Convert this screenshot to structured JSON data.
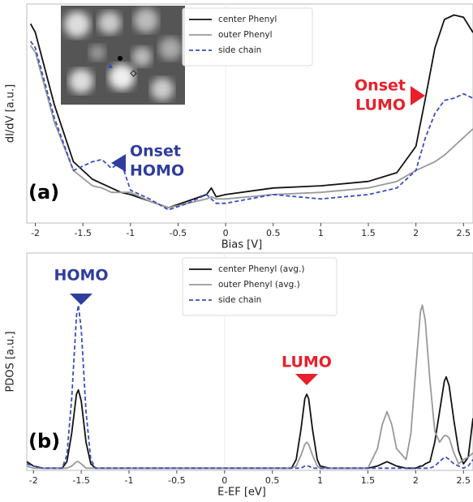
{
  "chart_data": [
    {
      "type": "line",
      "panel_label": "(a)",
      "xlabel": "Bias [V]",
      "ylabel": "dI/dV [a.u.]",
      "xlim": [
        -2.09,
        2.6
      ],
      "ylim": [
        0,
        1
      ],
      "xticks": [
        -2,
        -1.5,
        -1,
        -0.5,
        0,
        0.5,
        1,
        1.5,
        2,
        2.5
      ],
      "x": [
        -2.05,
        -2,
        -1.8,
        -1.6,
        -1.4,
        -1.3,
        -1.2,
        -1.1,
        -1,
        -0.8,
        -0.6,
        -0.4,
        -0.2,
        -0.15,
        -0.1,
        0,
        0.5,
        1,
        1.5,
        1.8,
        2,
        2.1,
        2.2,
        2.3,
        2.4,
        2.5,
        2.6
      ],
      "series": [
        {
          "name": "center Phenyl",
          "color": "#111111",
          "dash": false,
          "values": [
            0.91,
            0.87,
            0.54,
            0.28,
            0.2,
            0.18,
            0.16,
            0.14,
            0.13,
            0.1,
            0.07,
            0.1,
            0.13,
            0.16,
            0.12,
            0.13,
            0.16,
            0.17,
            0.19,
            0.23,
            0.35,
            0.57,
            0.8,
            0.93,
            0.95,
            0.94,
            0.87
          ]
        },
        {
          "name": "outer Phenyl",
          "color": "#999999",
          "dash": false,
          "values": [
            0.81,
            0.78,
            0.46,
            0.24,
            0.17,
            0.16,
            0.14,
            0.14,
            0.14,
            0.1,
            0.07,
            0.09,
            0.11,
            0.12,
            0.11,
            0.11,
            0.13,
            0.14,
            0.16,
            0.19,
            0.24,
            0.26,
            0.28,
            0.31,
            0.35,
            0.39,
            0.43
          ]
        },
        {
          "name": "side chain",
          "color": "#3a4dbf",
          "dash": true,
          "values": [
            0.83,
            0.8,
            0.48,
            0.24,
            0.28,
            0.29,
            0.25,
            0.28,
            0.15,
            0.11,
            0.06,
            0.09,
            0.13,
            0.11,
            0.09,
            0.09,
            0.13,
            0.11,
            0.13,
            0.16,
            0.24,
            0.39,
            0.5,
            0.56,
            0.57,
            0.59,
            0.57
          ]
        }
      ],
      "annotations": [
        {
          "lines": [
            "Onset",
            "HOMO"
          ],
          "color": "#2e3d9e"
        },
        {
          "lines": [
            "Onset",
            "LUMO"
          ],
          "color": "#e8202a"
        }
      ]
    },
    {
      "type": "line",
      "panel_label": "(b)",
      "xlabel": "E-EF [eV]",
      "ylabel": "PDOS [a.u.]",
      "xlim": [
        -2.07,
        2.6
      ],
      "ylim": [
        0,
        1
      ],
      "xticks": [
        -2,
        -1.5,
        -1,
        -0.5,
        0,
        0.5,
        1,
        1.5,
        2,
        2.5
      ],
      "x": [
        -2.07,
        -2,
        -1.9,
        -1.8,
        -1.7,
        -1.65,
        -1.6,
        -1.55,
        -1.53,
        -1.5,
        -1.45,
        -1.4,
        -1.35,
        -1.3,
        -1.2,
        -1,
        -0.5,
        0,
        0.5,
        0.7,
        0.75,
        0.8,
        0.84,
        0.86,
        0.88,
        0.92,
        0.97,
        1,
        1.1,
        1.3,
        1.5,
        1.6,
        1.65,
        1.7,
        1.75,
        1.8,
        1.9,
        1.95,
        2,
        2.05,
        2.07,
        2.1,
        2.15,
        2.2,
        2.25,
        2.3,
        2.32,
        2.35,
        2.4,
        2.45,
        2.5,
        2.55,
        2.6
      ],
      "series": [
        {
          "name": "center Phenyl (avg.)",
          "color": "#111111",
          "dash": false,
          "values": [
            0.04,
            0.02,
            0.01,
            0.01,
            0.01,
            0.04,
            0.17,
            0.35,
            0.37,
            0.32,
            0.13,
            0.03,
            0.01,
            0.01,
            0.01,
            0.01,
            0.01,
            0.01,
            0.01,
            0.01,
            0.05,
            0.19,
            0.33,
            0.35,
            0.33,
            0.19,
            0.05,
            0.02,
            0.01,
            0.01,
            0.01,
            0.02,
            0.03,
            0.04,
            0.03,
            0.02,
            0.01,
            0.01,
            0.01,
            0.02,
            0.02,
            0.03,
            0.04,
            0.13,
            0.27,
            0.41,
            0.43,
            0.39,
            0.23,
            0.09,
            0.03,
            0.06,
            0.24
          ]
        },
        {
          "name": "outer Phenyl (avg.)",
          "color": "#999999",
          "dash": false,
          "values": [
            0.02,
            0.01,
            0.01,
            0.01,
            0.01,
            0.01,
            0.02,
            0.04,
            0.04,
            0.03,
            0.01,
            0.01,
            0.01,
            0.01,
            0.01,
            0.01,
            0.01,
            0.01,
            0.01,
            0.01,
            0.02,
            0.07,
            0.12,
            0.13,
            0.12,
            0.07,
            0.02,
            0.01,
            0.01,
            0.01,
            0.01,
            0.1,
            0.21,
            0.27,
            0.21,
            0.1,
            0.05,
            0.17,
            0.46,
            0.73,
            0.76,
            0.69,
            0.41,
            0.18,
            0.13,
            0.16,
            0.16,
            0.15,
            0.08,
            0.03,
            0.05,
            0.06,
            0.08
          ]
        },
        {
          "name": "side chain",
          "color": "#3a4dbf",
          "dash": true,
          "values": [
            0.03,
            0.02,
            0.01,
            0.01,
            0.01,
            0.07,
            0.33,
            0.71,
            0.76,
            0.65,
            0.27,
            0.05,
            0.01,
            0.01,
            0.01,
            0.01,
            0.01,
            0.01,
            0.01,
            0.01,
            0.01,
            0.01,
            0.02,
            0.02,
            0.02,
            0.01,
            0.01,
            0.01,
            0.01,
            0.01,
            0.01,
            0.01,
            0.01,
            0.01,
            0.01,
            0.01,
            0.01,
            0.01,
            0.01,
            0.01,
            0.01,
            0.01,
            0.01,
            0.02,
            0.04,
            0.06,
            0.06,
            0.05,
            0.03,
            0.02,
            0.01,
            0.02,
            0.05
          ]
        }
      ],
      "annotations": [
        {
          "lines": [
            "HOMO"
          ],
          "color": "#2e3d9e"
        },
        {
          "lines": [
            "LUMO"
          ],
          "color": "#e8202a"
        }
      ]
    }
  ]
}
